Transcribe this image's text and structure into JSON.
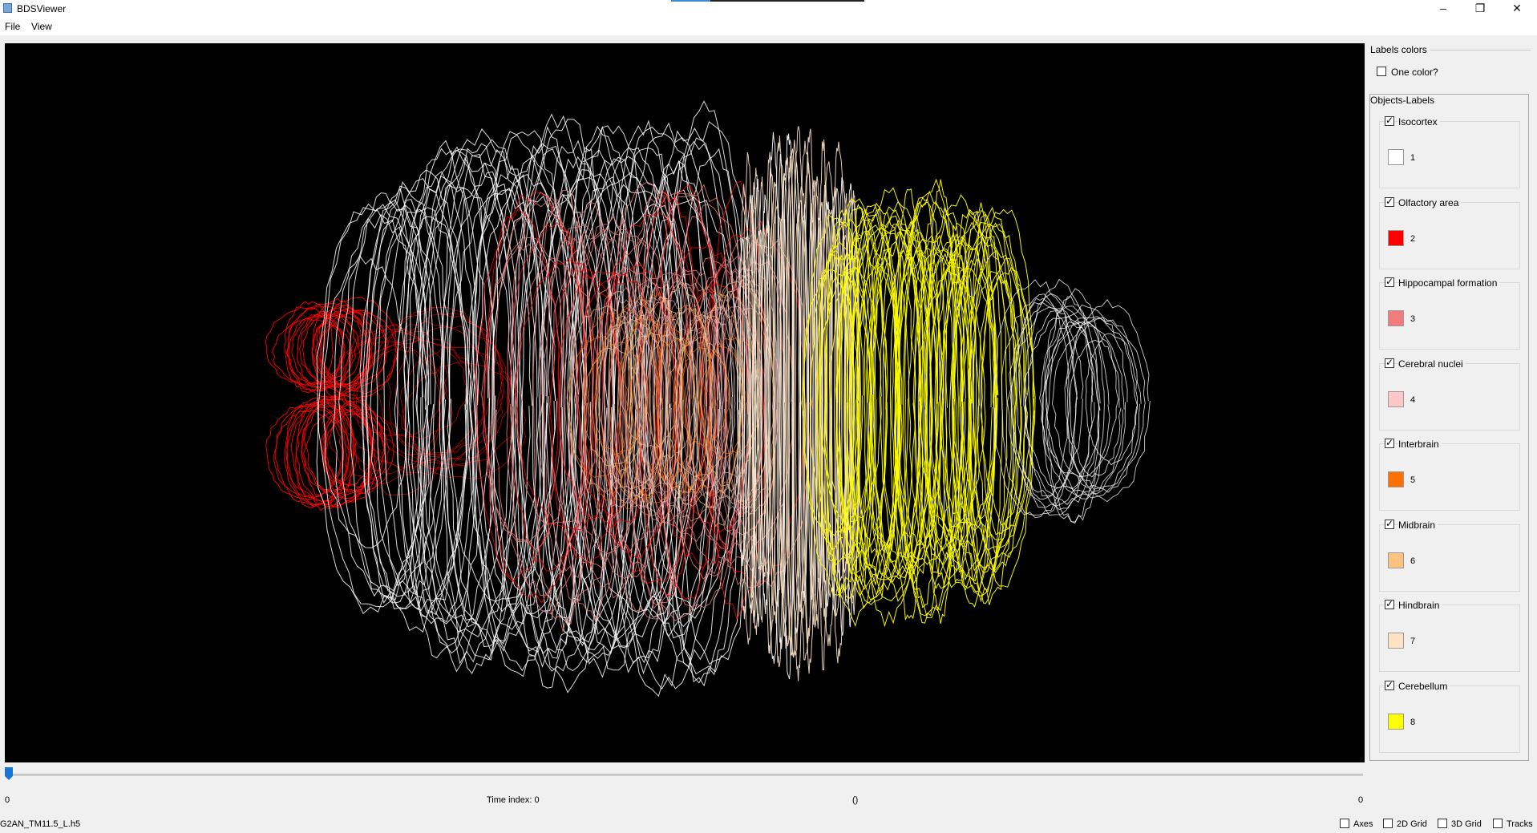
{
  "window": {
    "title": "BDSViewer",
    "controls": {
      "minimize": "–",
      "maximize": "❐",
      "close": "✕"
    }
  },
  "menu": {
    "file": "File",
    "view": "View"
  },
  "viewport": {
    "background": "#000000",
    "content": "3D wireframe brain region contours"
  },
  "panel": {
    "labels_colors_title": "Labels colors",
    "one_color_label": "One color?",
    "one_color_checked": false,
    "objects_labels_title": "Objects-Labels",
    "labels": [
      {
        "name": "Isocortex",
        "id": "1",
        "color": "#ffffff",
        "checked": true
      },
      {
        "name": "Olfactory area",
        "id": "2",
        "color": "#ff0000",
        "checked": true
      },
      {
        "name": "Hippocampal formation",
        "id": "3",
        "color": "#f07c7c",
        "checked": true
      },
      {
        "name": "Cerebral nuclei",
        "id": "4",
        "color": "#ffc8c8",
        "checked": true
      },
      {
        "name": "Interbrain",
        "id": "5",
        "color": "#ff7000",
        "checked": true
      },
      {
        "name": "Midbrain",
        "id": "6",
        "color": "#fbc280",
        "checked": true
      },
      {
        "name": "Hindbrain",
        "id": "7",
        "color": "#fde2c4",
        "checked": true
      },
      {
        "name": "Cerebellum",
        "id": "8",
        "color": "#ffff00",
        "checked": true
      }
    ]
  },
  "slider": {
    "min_label": "0",
    "max_label": "0",
    "time_index_label": "Time index: 0",
    "extra_label": "()",
    "value_fraction": 0
  },
  "status": {
    "file_name": "G2AN_TM11.5_L.h5",
    "toggles": [
      {
        "label": "Axes",
        "checked": false
      },
      {
        "label": "2D Grid",
        "checked": false
      },
      {
        "label": "3D Grid",
        "checked": false
      },
      {
        "label": "Tracks",
        "checked": false
      }
    ]
  }
}
